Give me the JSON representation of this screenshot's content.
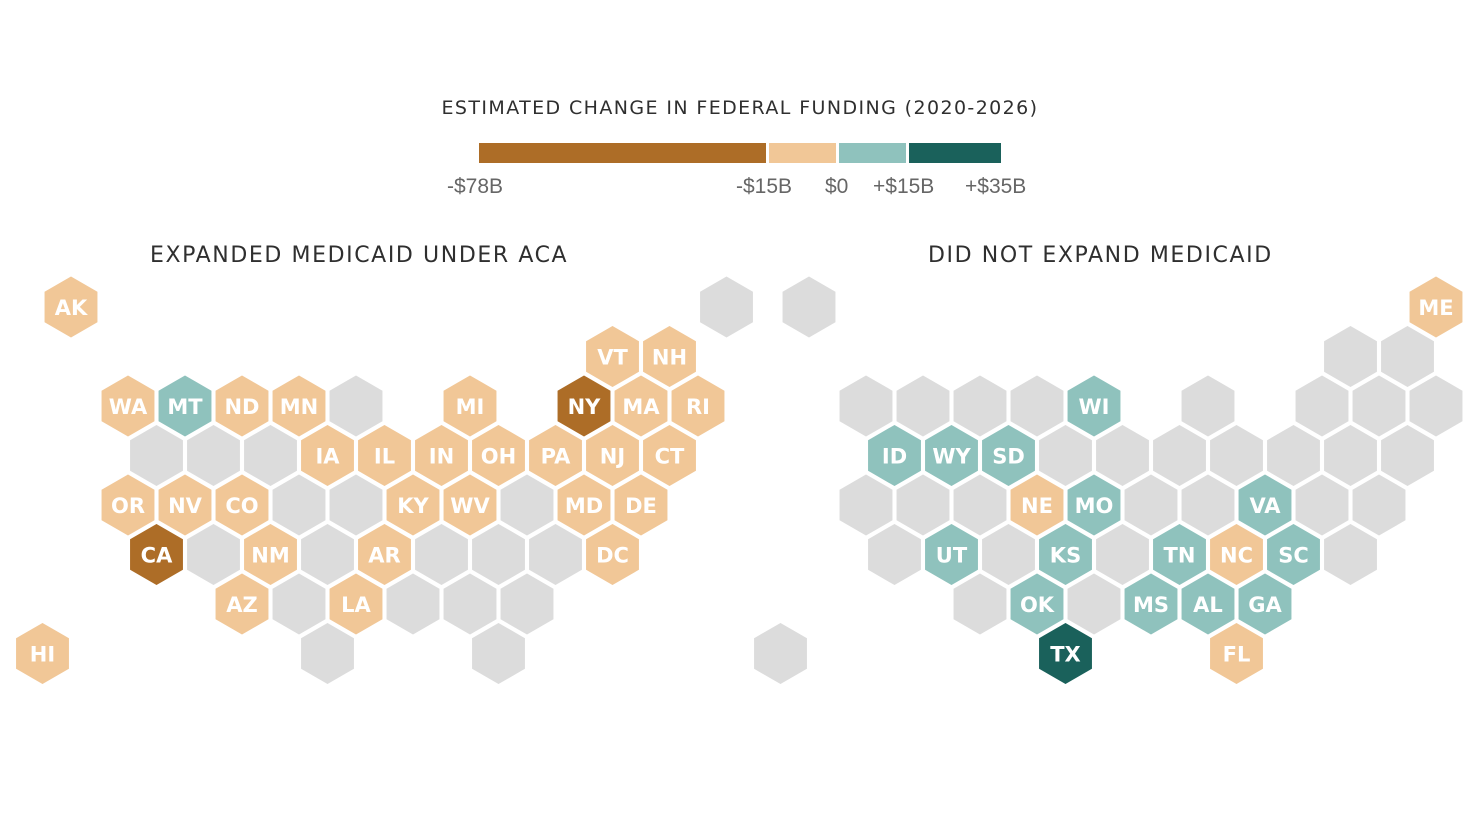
{
  "legend": {
    "title": "ESTIMATED CHANGE IN FEDERAL FUNDING (2020-2026)",
    "segments": [
      {
        "name": "large-loss",
        "color": "#ad6d27"
      },
      {
        "name": "small-loss",
        "color": "#f1c797"
      },
      {
        "name": "small-gain",
        "color": "#8fc2bd"
      },
      {
        "name": "large-gain",
        "color": "#1a615b"
      }
    ],
    "ticks": [
      "-$78B",
      "-$15B",
      "$0",
      "+$15B",
      "+$35B"
    ]
  },
  "colors": {
    "empty_hex": "#dcdcdc",
    "label_text": "#ffffff"
  },
  "maps": [
    {
      "title": "EXPANDED MEDICAID UNDER ACA",
      "states": [
        {
          "abbr": "AK",
          "category": "small-loss"
        },
        {
          "abbr": "WA",
          "category": "small-loss"
        },
        {
          "abbr": "MT",
          "category": "small-gain"
        },
        {
          "abbr": "ND",
          "category": "small-loss"
        },
        {
          "abbr": "MN",
          "category": "small-loss"
        },
        {
          "abbr": "MI",
          "category": "small-loss"
        },
        {
          "abbr": "NY",
          "category": "large-loss"
        },
        {
          "abbr": "MA",
          "category": "small-loss"
        },
        {
          "abbr": "RI",
          "category": "small-loss"
        },
        {
          "abbr": "VT",
          "category": "small-loss"
        },
        {
          "abbr": "NH",
          "category": "small-loss"
        },
        {
          "abbr": "IA",
          "category": "small-loss"
        },
        {
          "abbr": "IL",
          "category": "small-loss"
        },
        {
          "abbr": "IN",
          "category": "small-loss"
        },
        {
          "abbr": "OH",
          "category": "small-loss"
        },
        {
          "abbr": "PA",
          "category": "small-loss"
        },
        {
          "abbr": "NJ",
          "category": "small-loss"
        },
        {
          "abbr": "CT",
          "category": "small-loss"
        },
        {
          "abbr": "OR",
          "category": "small-loss"
        },
        {
          "abbr": "NV",
          "category": "small-loss"
        },
        {
          "abbr": "CO",
          "category": "small-loss"
        },
        {
          "abbr": "KY",
          "category": "small-loss"
        },
        {
          "abbr": "WV",
          "category": "small-loss"
        },
        {
          "abbr": "MD",
          "category": "small-loss"
        },
        {
          "abbr": "DE",
          "category": "small-loss"
        },
        {
          "abbr": "CA",
          "category": "large-loss"
        },
        {
          "abbr": "NM",
          "category": "small-loss"
        },
        {
          "abbr": "AR",
          "category": "small-loss"
        },
        {
          "abbr": "DC",
          "category": "small-loss"
        },
        {
          "abbr": "AZ",
          "category": "small-loss"
        },
        {
          "abbr": "LA",
          "category": "small-loss"
        },
        {
          "abbr": "HI",
          "category": "small-loss"
        }
      ]
    },
    {
      "title": "DID NOT EXPAND MEDICAID",
      "states": [
        {
          "abbr": "ME",
          "category": "small-loss"
        },
        {
          "abbr": "WI",
          "category": "small-gain"
        },
        {
          "abbr": "ID",
          "category": "small-gain"
        },
        {
          "abbr": "WY",
          "category": "small-gain"
        },
        {
          "abbr": "SD",
          "category": "small-gain"
        },
        {
          "abbr": "NE",
          "category": "small-loss"
        },
        {
          "abbr": "MO",
          "category": "small-gain"
        },
        {
          "abbr": "VA",
          "category": "small-gain"
        },
        {
          "abbr": "UT",
          "category": "small-gain"
        },
        {
          "abbr": "KS",
          "category": "small-gain"
        },
        {
          "abbr": "TN",
          "category": "small-gain"
        },
        {
          "abbr": "NC",
          "category": "small-loss"
        },
        {
          "abbr": "SC",
          "category": "small-gain"
        },
        {
          "abbr": "OK",
          "category": "small-gain"
        },
        {
          "abbr": "MS",
          "category": "small-gain"
        },
        {
          "abbr": "AL",
          "category": "small-gain"
        },
        {
          "abbr": "GA",
          "category": "small-gain"
        },
        {
          "abbr": "TX",
          "category": "large-gain"
        },
        {
          "abbr": "FL",
          "category": "small-loss"
        }
      ]
    }
  ]
}
